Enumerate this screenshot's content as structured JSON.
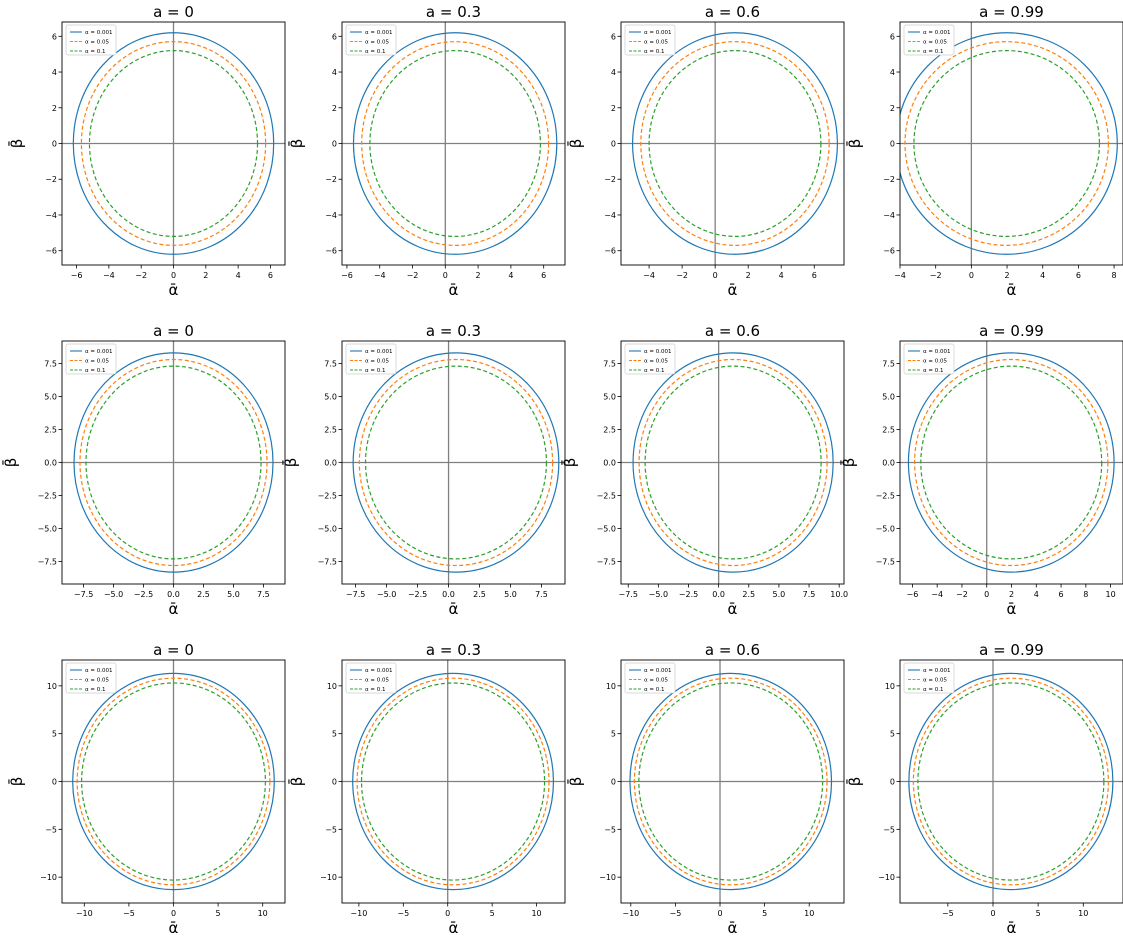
{
  "chart_data": {
    "type": "line",
    "legend": [
      "α = 0.001",
      "α = 0.05",
      "α = 0.1"
    ],
    "series_colors": [
      "#1f77b4",
      "#ff7f0e",
      "#2ca02c"
    ],
    "series_styles": [
      "solid",
      "dashed",
      "dashed"
    ],
    "xlabel": "ᾱ",
    "ylabel": "β̄",
    "legend_placement": "upper-left",
    "grid": false,
    "rows": [
      {
        "ylim": [
          -6.8,
          6.8
        ],
        "yticks": [
          -6,
          -4,
          -2,
          0,
          2,
          4,
          6
        ],
        "ytick_labels": [
          "−6",
          "−4",
          "−2",
          "0",
          "2",
          "4",
          "6"
        ],
        "radii": [
          6.2,
          5.7,
          5.2
        ],
        "panels": [
          {
            "title": "a = 0",
            "spin": 0,
            "xlim": [
              -6.9,
              6.9
            ],
            "xticks": [
              -6,
              -4,
              -2,
              0,
              2,
              4,
              6
            ],
            "xtick_labels": [
              "−6",
              "−4",
              "−2",
              "0",
              "2",
              "4",
              "6"
            ]
          },
          {
            "title": "a = 0.3",
            "spin": 0.3,
            "xlim": [
              -6.3,
              7.3
            ],
            "xticks": [
              -6,
              -4,
              -2,
              0,
              2,
              4,
              6
            ],
            "xtick_labels": [
              "−6",
              "−4",
              "−2",
              "0",
              "2",
              "4",
              "6"
            ]
          },
          {
            "title": "a = 0.6",
            "spin": 0.6,
            "xlim": [
              -5.7,
              7.8
            ],
            "xticks": [
              -4,
              -2,
              0,
              2,
              4,
              6
            ],
            "xtick_labels": [
              "−4",
              "−2",
              "0",
              "2",
              "4",
              "6"
            ]
          },
          {
            "title": "a = 0.99",
            "spin": 0.99,
            "xlim": [
              -4.0,
              8.5
            ],
            "xticks": [
              -4,
              -2,
              0,
              2,
              4,
              6,
              8
            ],
            "xtick_labels": [
              "−4",
              "−2",
              "0",
              "2",
              "4",
              "6",
              "8"
            ]
          }
        ]
      },
      {
        "ylim": [
          -9.2,
          9.2
        ],
        "yticks": [
          -7.5,
          -5,
          -2.5,
          0,
          2.5,
          5,
          7.5
        ],
        "ytick_labels": [
          "−7.5",
          "−5.0",
          "−2.5",
          "0.0",
          "2.5",
          "5.0",
          "7.5"
        ],
        "radii": [
          8.3,
          7.8,
          7.3
        ],
        "panels": [
          {
            "title": "a = 0",
            "spin": 0,
            "xlim": [
              -9.3,
              9.3
            ],
            "xticks": [
              -7.5,
              -5,
              -2.5,
              0,
              2.5,
              5,
              7.5
            ],
            "xtick_labels": [
              "−7.5",
              "−5.0",
              "−2.5",
              "0.0",
              "2.5",
              "5.0",
              "7.5"
            ]
          },
          {
            "title": "a = 0.3",
            "spin": 0.3,
            "xlim": [
              -8.6,
              9.4
            ],
            "xticks": [
              -7.5,
              -5,
              -2.5,
              0,
              2.5,
              5,
              7.5
            ],
            "xtick_labels": [
              "−7.5",
              "−5.0",
              "−2.5",
              "0.0",
              "2.5",
              "5.0",
              "7.5"
            ]
          },
          {
            "title": "a = 0.6",
            "spin": 0.6,
            "xlim": [
              -8.1,
              10.4
            ],
            "xticks": [
              -7.5,
              -5,
              -2.5,
              0,
              2.5,
              5,
              7.5,
              10
            ],
            "xtick_labels": [
              "−7.5",
              "−5.0",
              "−2.5",
              "0.0",
              "2.5",
              "5.0",
              "7.5",
              "10.0"
            ]
          },
          {
            "title": "a = 0.99",
            "spin": 0.99,
            "xlim": [
              -7.0,
              11.0
            ],
            "xticks": [
              -6,
              -4,
              -2,
              0,
              2,
              4,
              6,
              8,
              10
            ],
            "xtick_labels": [
              "−6",
              "−4",
              "−2",
              "0",
              "2",
              "4",
              "6",
              "8",
              "10"
            ]
          }
        ]
      },
      {
        "ylim": [
          -12.7,
          12.7
        ],
        "yticks": [
          -10,
          -5,
          0,
          5,
          10
        ],
        "ytick_labels": [
          "−10",
          "−5",
          "0",
          "5",
          "10"
        ],
        "radii": [
          11.3,
          10.8,
          10.3
        ],
        "panels": [
          {
            "title": "a = 0",
            "spin": 0,
            "xlim": [
              -12.5,
              12.5
            ],
            "xticks": [
              -10,
              -5,
              0,
              5,
              10
            ],
            "xtick_labels": [
              "−10",
              "−5",
              "0",
              "5",
              "10"
            ]
          },
          {
            "title": "a = 0.3",
            "spin": 0.3,
            "xlim": [
              -11.9,
              13.2
            ],
            "xticks": [
              -10,
              -5,
              0,
              5,
              10
            ],
            "xtick_labels": [
              "−10",
              "−5",
              "0",
              "5",
              "10"
            ]
          },
          {
            "title": "a = 0.6",
            "spin": 0.6,
            "xlim": [
              -11.1,
              13.9
            ],
            "xticks": [
              -10,
              -5,
              0,
              5,
              10
            ],
            "xtick_labels": [
              "−10",
              "−5",
              "0",
              "5",
              "10"
            ]
          },
          {
            "title": "a = 0.99",
            "spin": 0.99,
            "xlim": [
              -10.3,
              14.4
            ],
            "xticks": [
              -5,
              0,
              5,
              10
            ],
            "xtick_labels": [
              "−5",
              "0",
              "5",
              "10"
            ]
          }
        ]
      }
    ]
  }
}
